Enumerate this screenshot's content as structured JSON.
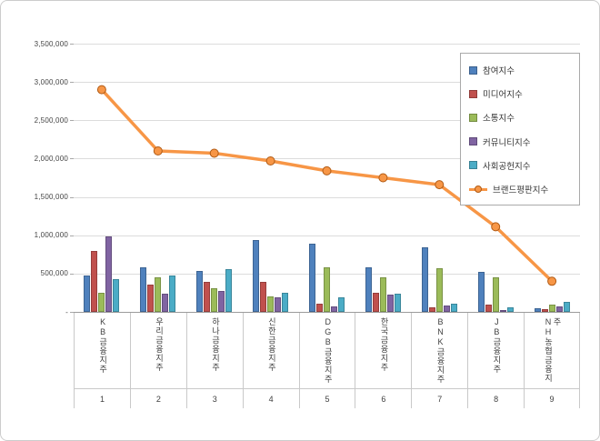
{
  "chart_data": {
    "type": "bar",
    "combo": "grouped bars with overlay line",
    "title": "",
    "categories": [
      "KB금융지주",
      "우리금융지주",
      "하나금융지주",
      "신한금융지주",
      "DGB금융지주",
      "한국금융지주",
      "BNK금융지주",
      "JB금융지주",
      "NH농협금융지주"
    ],
    "category_numbers": [
      "1",
      "2",
      "3",
      "4",
      "5",
      "6",
      "7",
      "8",
      "9"
    ],
    "series": [
      {
        "name": "참여지수",
        "type": "bar",
        "color": "#4F81BD",
        "values": [
          470000,
          580000,
          540000,
          940000,
          890000,
          580000,
          840000,
          520000,
          50000
        ]
      },
      {
        "name": "미디어지수",
        "type": "bar",
        "color": "#C0504D",
        "values": [
          800000,
          360000,
          390000,
          390000,
          110000,
          250000,
          60000,
          90000,
          40000
        ]
      },
      {
        "name": "소통지수",
        "type": "bar",
        "color": "#9BBB59",
        "values": [
          250000,
          450000,
          310000,
          200000,
          580000,
          450000,
          570000,
          450000,
          90000
        ]
      },
      {
        "name": "커뮤니티지수",
        "type": "bar",
        "color": "#8064A2",
        "values": [
          980000,
          240000,
          270000,
          190000,
          70000,
          230000,
          80000,
          20000,
          70000
        ]
      },
      {
        "name": "사회공헌지수",
        "type": "bar",
        "color": "#4BACC6",
        "values": [
          430000,
          470000,
          560000,
          250000,
          190000,
          240000,
          110000,
          60000,
          130000
        ]
      },
      {
        "name": "브랜드평판지수",
        "type": "line",
        "color": "#F79646",
        "values": [
          2900000,
          2100000,
          2070000,
          1970000,
          1840000,
          1750000,
          1660000,
          1110000,
          400000
        ]
      }
    ],
    "y_axis": {
      "min": 0,
      "max": 3500000,
      "tick_interval": 500000,
      "tick_labels": [
        "-",
        "500,000",
        "1,000,000",
        "1,500,000",
        "2,000,000",
        "2,500,000",
        "3,000,000",
        "3,500,000"
      ]
    },
    "grid": true,
    "legend_position": "top-right"
  }
}
